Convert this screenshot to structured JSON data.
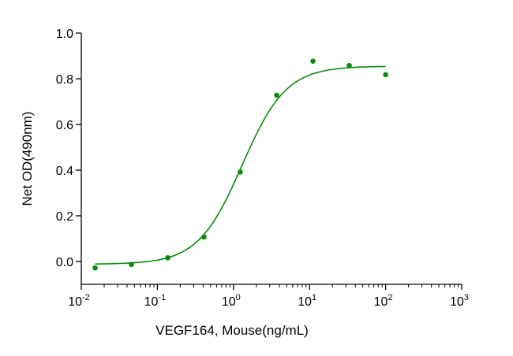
{
  "chart_data": {
    "type": "scatter",
    "title": "",
    "xlabel": "VEGF164, Mouse(ng/mL)",
    "ylabel": "Net OD(490nm)",
    "x_scale": "log",
    "xlim": [
      0.01,
      1000
    ],
    "ylim": [
      -0.1,
      1.0
    ],
    "x_ticks": [
      {
        "base": "10",
        "exp": "-2"
      },
      {
        "base": "10",
        "exp": "-1"
      },
      {
        "base": "10",
        "exp": "0"
      },
      {
        "base": "10",
        "exp": "1"
      },
      {
        "base": "10",
        "exp": "2"
      },
      {
        "base": "10",
        "exp": "3"
      }
    ],
    "y_ticks": [
      "0.0",
      "0.2",
      "0.4",
      "0.6",
      "0.8",
      "1.0"
    ],
    "grid": false,
    "legend": "none",
    "color": "#0a8a0a",
    "points": [
      {
        "x": 0.0152,
        "y": -0.028
      },
      {
        "x": 0.0457,
        "y": -0.013
      },
      {
        "x": 0.137,
        "y": 0.016
      },
      {
        "x": 0.41,
        "y": 0.107
      },
      {
        "x": 1.23,
        "y": 0.392
      },
      {
        "x": 3.7,
        "y": 0.728
      },
      {
        "x": 11.1,
        "y": 0.877
      },
      {
        "x": 33.3,
        "y": 0.858
      },
      {
        "x": 100,
        "y": 0.818
      }
    ],
    "fit": {
      "model": "4PL",
      "bottom": -0.012,
      "top": 0.855,
      "ec50": 1.3,
      "hill": 1.5,
      "x_range": [
        0.0152,
        100
      ]
    }
  }
}
